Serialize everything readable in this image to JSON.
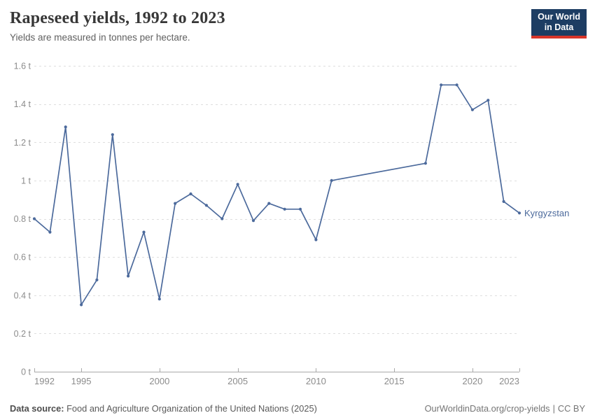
{
  "header": {
    "title": "Rapeseed yields, 1992 to 2023",
    "subtitle": "Yields are measured in tonnes per hectare.",
    "logo": {
      "line1": "Our World",
      "line2": "in Data"
    }
  },
  "footer": {
    "source_label": "Data source:",
    "source_text": "Food and Agriculture Organization of the United Nations (2025)",
    "url": "OurWorldinData.org/crop-yields",
    "separator": "|",
    "license": "CC BY"
  },
  "colors": {
    "line": "#4c6a9c",
    "logo_background": "#1d3d63",
    "logo_accent": "#d8352a",
    "gridline": "#dedede",
    "axis": "#a9a9a9",
    "tick_text": "#8c8c8c"
  },
  "chart_data": {
    "type": "line",
    "title": "Rapeseed yields, 1992 to 2023",
    "subtitle": "Yields are measured in tonnes per hectare.",
    "xlabel": "",
    "ylabel": "tonnes per hectare",
    "unit": "t",
    "xlim": [
      1992,
      2023
    ],
    "ylim": [
      0,
      1.6
    ],
    "xticks": [
      1992,
      1995,
      2000,
      2005,
      2010,
      2015,
      2020,
      2023
    ],
    "yticks": [
      0,
      0.2,
      0.4,
      0.6,
      0.8,
      1,
      1.2,
      1.4,
      1.6
    ],
    "grid": "horizontal-dashed",
    "legend_position": "end-of-line-label",
    "series": [
      {
        "name": "Kyrgyzstan",
        "color": "#4c6a9c",
        "x": [
          1992,
          1993,
          1994,
          1995,
          1996,
          1997,
          1998,
          1999,
          2000,
          2001,
          2002,
          2003,
          2004,
          2005,
          2006,
          2007,
          2008,
          2009,
          2010,
          2011,
          2012,
          2013,
          2014,
          2015,
          2016,
          2017,
          2018,
          2019,
          2020,
          2021,
          2022,
          2023
        ],
        "y": [
          0.8,
          0.73,
          1.28,
          0.35,
          0.48,
          1.24,
          0.5,
          0.73,
          0.38,
          0.88,
          0.93,
          0.87,
          0.8,
          0.98,
          0.79,
          0.88,
          0.85,
          0.85,
          0.69,
          1.0,
          null,
          null,
          null,
          null,
          null,
          1.09,
          1.5,
          1.5,
          1.37,
          1.42,
          0.89,
          0.83
        ]
      }
    ]
  }
}
